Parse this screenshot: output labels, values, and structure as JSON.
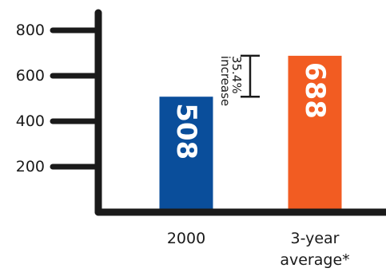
{
  "chart_data": {
    "type": "bar",
    "categories": [
      "2000",
      [
        "3-year",
        "average*"
      ]
    ],
    "values": [
      508,
      688
    ],
    "value_labels": [
      "508",
      "688"
    ],
    "colors": [
      "#0a4e9b",
      "#f25c22"
    ],
    "yticks": [
      200,
      400,
      600,
      800
    ],
    "ytick_labels": [
      "200",
      "400",
      "600",
      "800"
    ],
    "ylim": [
      0,
      900
    ],
    "grid": false,
    "annotation": {
      "lines": [
        "35.4%",
        "increase"
      ],
      "from": 508,
      "to": 688
    }
  }
}
